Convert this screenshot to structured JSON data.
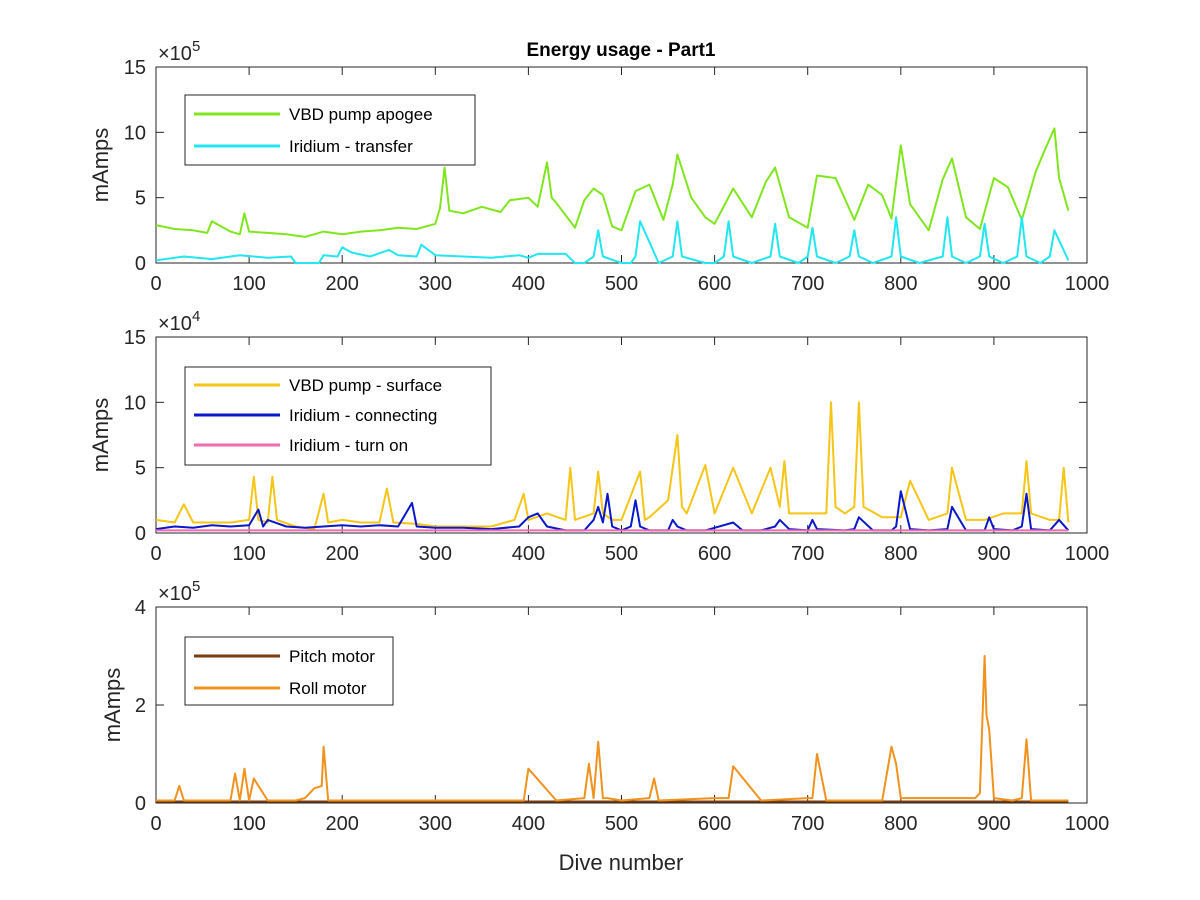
{
  "figure": {
    "background": "#ffffff",
    "xlabel": "Dive number"
  },
  "chart_data": [
    {
      "type": "line",
      "title": "Energy usage - Part1",
      "ylabel": "mAmps",
      "exponent_label": "×10",
      "exponent_power": "5",
      "xlim": [
        0,
        1000
      ],
      "ylim": [
        0,
        15
      ],
      "xticks": [
        0,
        100,
        200,
        300,
        400,
        500,
        600,
        700,
        800,
        900,
        1000
      ],
      "yticks": [
        0,
        5,
        10,
        15
      ],
      "ytick_labels": [
        "0",
        "5",
        "10",
        "15"
      ],
      "legend": "top-left",
      "series": [
        {
          "name": "VBD pump apogee",
          "color": "#7fe61e",
          "x": [
            0,
            20,
            40,
            55,
            60,
            80,
            90,
            95,
            100,
            120,
            140,
            160,
            180,
            200,
            220,
            240,
            260,
            280,
            300,
            305,
            310,
            315,
            330,
            350,
            370,
            380,
            400,
            410,
            420,
            425,
            430,
            450,
            460,
            470,
            480,
            490,
            500,
            515,
            530,
            545,
            555,
            560,
            575,
            590,
            600,
            620,
            640,
            655,
            665,
            680,
            700,
            710,
            730,
            750,
            765,
            780,
            790,
            800,
            810,
            830,
            845,
            855,
            870,
            885,
            900,
            915,
            930,
            945,
            955,
            965,
            970,
            980
          ],
          "values": [
            2.9,
            2.6,
            2.5,
            2.3,
            3.2,
            2.4,
            2.2,
            3.8,
            2.4,
            2.3,
            2.2,
            2.0,
            2.4,
            2.2,
            2.4,
            2.5,
            2.7,
            2.6,
            3.0,
            4.2,
            7.3,
            4.0,
            3.8,
            4.3,
            3.9,
            4.8,
            5.0,
            4.3,
            7.7,
            5.0,
            4.6,
            2.7,
            4.8,
            5.7,
            5.2,
            2.8,
            2.5,
            5.5,
            6.0,
            3.3,
            6.0,
            8.3,
            5.0,
            3.5,
            3.0,
            5.7,
            3.5,
            6.2,
            7.3,
            3.5,
            2.7,
            6.7,
            6.5,
            3.3,
            6.0,
            5.2,
            3.4,
            9.0,
            4.5,
            2.5,
            6.4,
            8.0,
            3.5,
            2.6,
            6.5,
            5.8,
            3.3,
            7.0,
            8.7,
            10.3,
            6.5,
            4.0
          ]
        },
        {
          "name": "Iridium - transfer",
          "color": "#22e6f0",
          "x": [
            0,
            30,
            60,
            90,
            120,
            145,
            150,
            175,
            180,
            195,
            200,
            210,
            230,
            250,
            260,
            280,
            285,
            300,
            330,
            360,
            390,
            400,
            410,
            440,
            450,
            460,
            470,
            475,
            480,
            500,
            510,
            515,
            520,
            540,
            555,
            560,
            565,
            590,
            600,
            610,
            615,
            620,
            640,
            660,
            665,
            670,
            690,
            700,
            705,
            710,
            730,
            745,
            750,
            755,
            770,
            790,
            795,
            800,
            820,
            845,
            850,
            855,
            870,
            885,
            890,
            895,
            910,
            925,
            930,
            935,
            950,
            960,
            965,
            980
          ],
          "values": [
            0.2,
            0.5,
            0.3,
            0.6,
            0.4,
            0.5,
            0.0,
            0.0,
            0.6,
            0.5,
            1.2,
            0.8,
            0.5,
            1.0,
            0.6,
            0.5,
            1.4,
            0.6,
            0.5,
            0.4,
            0.6,
            0.4,
            0.7,
            0.7,
            0.0,
            0.0,
            0.5,
            2.5,
            0.5,
            0.0,
            0.0,
            0.5,
            3.2,
            0.0,
            0.5,
            3.2,
            0.5,
            0.0,
            0.0,
            0.5,
            3.2,
            0.5,
            0.0,
            0.5,
            3.0,
            0.5,
            0.0,
            0.5,
            2.7,
            0.5,
            0.0,
            0.5,
            2.5,
            0.5,
            0.0,
            0.5,
            3.5,
            0.5,
            0.0,
            0.5,
            3.5,
            0.5,
            0.0,
            0.5,
            3.0,
            0.5,
            0.0,
            0.5,
            3.5,
            0.5,
            0.0,
            0.5,
            2.5,
            0.2
          ]
        }
      ]
    },
    {
      "type": "line",
      "ylabel": "mAmps",
      "exponent_label": "×10",
      "exponent_power": "4",
      "xlim": [
        0,
        1000
      ],
      "ylim": [
        0,
        15
      ],
      "xticks": [
        0,
        100,
        200,
        300,
        400,
        500,
        600,
        700,
        800,
        900,
        1000
      ],
      "yticks": [
        0,
        5,
        10,
        15
      ],
      "ytick_labels": [
        "0",
        "5",
        "10",
        "15"
      ],
      "legend": "top-left",
      "series": [
        {
          "name": "VBD pump - surface",
          "color": "#f5c518",
          "x": [
            0,
            20,
            30,
            40,
            60,
            80,
            100,
            105,
            110,
            120,
            125,
            130,
            150,
            170,
            180,
            185,
            200,
            220,
            240,
            248,
            255,
            280,
            300,
            330,
            360,
            385,
            395,
            400,
            420,
            440,
            445,
            450,
            470,
            475,
            480,
            490,
            500,
            520,
            525,
            530,
            550,
            560,
            565,
            570,
            590,
            600,
            620,
            640,
            660,
            670,
            675,
            680,
            700,
            720,
            725,
            730,
            740,
            750,
            755,
            760,
            780,
            800,
            810,
            830,
            850,
            855,
            870,
            890,
            910,
            930,
            935,
            940,
            960,
            970,
            975,
            980
          ],
          "values": [
            1.0,
            0.8,
            2.2,
            0.8,
            0.8,
            0.8,
            1.0,
            4.3,
            1.0,
            0.8,
            4.3,
            1.0,
            0.5,
            0.3,
            3.0,
            0.8,
            1.0,
            0.8,
            0.8,
            3.4,
            0.8,
            0.7,
            0.5,
            0.5,
            0.5,
            1.0,
            3.0,
            1.0,
            1.5,
            1.0,
            5.0,
            1.0,
            1.5,
            4.7,
            1.5,
            1.0,
            1.0,
            4.7,
            1.0,
            1.2,
            2.5,
            7.5,
            2.0,
            1.5,
            5.2,
            1.5,
            5.0,
            1.5,
            5.0,
            2.0,
            5.5,
            1.5,
            1.5,
            1.5,
            10.0,
            2.0,
            1.5,
            2.0,
            10.0,
            2.0,
            1.2,
            1.2,
            4.0,
            1.0,
            1.5,
            5.0,
            1.0,
            1.0,
            1.5,
            1.5,
            5.5,
            1.5,
            1.0,
            1.0,
            5.0,
            0.8
          ]
        },
        {
          "name": "Iridium - connecting",
          "color": "#0a18c8",
          "x": [
            0,
            20,
            40,
            60,
            80,
            100,
            110,
            115,
            120,
            140,
            160,
            180,
            200,
            220,
            240,
            260,
            275,
            280,
            300,
            330,
            360,
            390,
            400,
            410,
            420,
            440,
            460,
            470,
            475,
            480,
            485,
            490,
            500,
            510,
            515,
            520,
            530,
            550,
            555,
            560,
            570,
            590,
            620,
            630,
            650,
            665,
            670,
            680,
            700,
            705,
            710,
            740,
            750,
            755,
            770,
            790,
            795,
            800,
            810,
            830,
            850,
            855,
            870,
            890,
            895,
            900,
            920,
            930,
            935,
            940,
            960,
            970,
            980
          ],
          "values": [
            0.3,
            0.5,
            0.4,
            0.6,
            0.5,
            0.6,
            1.8,
            0.5,
            1.0,
            0.5,
            0.4,
            0.5,
            0.6,
            0.5,
            0.6,
            0.5,
            2.3,
            0.5,
            0.4,
            0.4,
            0.3,
            0.5,
            1.2,
            1.5,
            0.5,
            0.2,
            0.2,
            1.0,
            2.0,
            0.8,
            3.0,
            0.5,
            0.2,
            0.5,
            2.5,
            0.5,
            0.2,
            0.2,
            1.0,
            0.5,
            0.2,
            0.2,
            0.8,
            0.2,
            0.2,
            0.5,
            1.0,
            0.3,
            0.2,
            1.0,
            0.3,
            0.2,
            0.3,
            1.2,
            0.2,
            0.2,
            0.5,
            3.2,
            0.3,
            0.2,
            0.3,
            2.0,
            0.2,
            0.2,
            1.2,
            0.3,
            0.2,
            0.5,
            3.0,
            0.3,
            0.2,
            1.0,
            0.2
          ]
        },
        {
          "name": "Iridium - turn on",
          "color": "#f06ab0",
          "x": [
            0,
            100,
            200,
            300,
            400,
            500,
            600,
            700,
            800,
            900,
            980
          ],
          "values": [
            0.2,
            0.2,
            0.2,
            0.2,
            0.2,
            0.2,
            0.2,
            0.2,
            0.2,
            0.2,
            0.2
          ]
        }
      ]
    },
    {
      "type": "line",
      "ylabel": "mAmps",
      "exponent_label": "×10",
      "exponent_power": "5",
      "xlim": [
        0,
        1000
      ],
      "ylim": [
        0,
        4
      ],
      "xticks": [
        0,
        100,
        200,
        300,
        400,
        500,
        600,
        700,
        800,
        900,
        1000
      ],
      "yticks": [
        0,
        2,
        4
      ],
      "ytick_labels": [
        "0",
        "2",
        "4"
      ],
      "legend": "top-left",
      "series": [
        {
          "name": "Pitch motor",
          "color": "#7a3a0c",
          "x": [
            0,
            100,
            200,
            300,
            400,
            500,
            600,
            700,
            800,
            900,
            980
          ],
          "values": [
            0.03,
            0.03,
            0.03,
            0.03,
            0.03,
            0.03,
            0.03,
            0.03,
            0.03,
            0.03,
            0.03
          ]
        },
        {
          "name": "Roll motor",
          "color": "#f0921e",
          "x": [
            0,
            20,
            25,
            30,
            60,
            80,
            85,
            90,
            95,
            100,
            105,
            120,
            150,
            160,
            170,
            178,
            180,
            185,
            200,
            300,
            385,
            395,
            400,
            430,
            460,
            465,
            470,
            475,
            480,
            485,
            500,
            530,
            535,
            540,
            600,
            615,
            620,
            650,
            700,
            705,
            710,
            720,
            780,
            790,
            795,
            800,
            850,
            880,
            885,
            890,
            892,
            895,
            900,
            920,
            930,
            935,
            940,
            980
          ],
          "values": [
            0.05,
            0.05,
            0.35,
            0.05,
            0.05,
            0.05,
            0.6,
            0.05,
            0.7,
            0.05,
            0.5,
            0.05,
            0.05,
            0.1,
            0.3,
            0.35,
            1.15,
            0.05,
            0.05,
            0.05,
            0.05,
            0.05,
            0.7,
            0.05,
            0.1,
            0.8,
            0.1,
            1.25,
            0.1,
            0.1,
            0.05,
            0.1,
            0.5,
            0.05,
            0.1,
            0.1,
            0.75,
            0.05,
            0.1,
            0.1,
            1.0,
            0.05,
            0.05,
            1.15,
            0.8,
            0.1,
            0.1,
            0.1,
            0.2,
            3.0,
            1.8,
            1.5,
            0.1,
            0.05,
            0.1,
            1.3,
            0.05,
            0.05
          ]
        }
      ]
    }
  ]
}
